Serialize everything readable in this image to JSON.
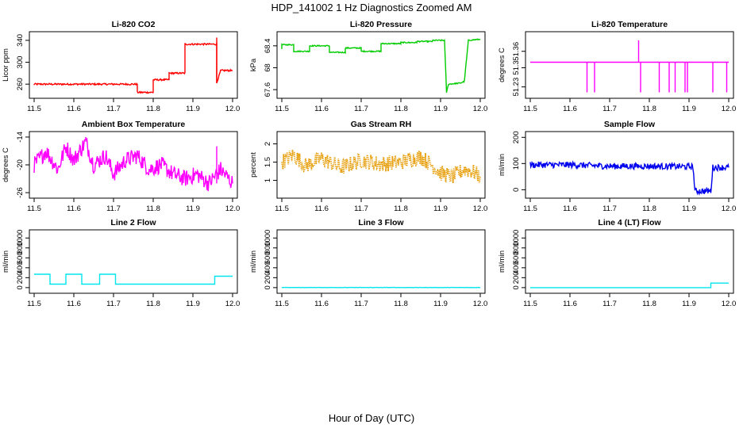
{
  "figure": {
    "title": "HDP_141002  1 Hz Diagnostics Zoomed AM",
    "xlabel": "Hour of Day (UTC)"
  },
  "chart_data": [
    {
      "type": "line",
      "title": "Li-820 CO2",
      "ylabel": "Licor ppm",
      "color": "#ff0000",
      "xlim": [
        11.5,
        12.0
      ],
      "ylim": [
        240,
        350
      ],
      "yticks": [
        260,
        300,
        340
      ],
      "x": [
        11.5,
        11.5,
        11.76,
        11.76,
        11.8,
        11.8,
        11.84,
        11.84,
        11.88,
        11.88,
        11.96,
        11.96,
        11.97,
        11.97,
        12.0
      ],
      "y": [
        258,
        260,
        260,
        245,
        245,
        268,
        268,
        280,
        280,
        333,
        333,
        262,
        285,
        285,
        285
      ],
      "noise": 1.5,
      "spikes": [
        {
          "x": 11.96,
          "y": 345
        }
      ]
    },
    {
      "type": "line",
      "title": "Li-820 Pressure",
      "ylabel": "kPa",
      "color": "#00cc00",
      "xlim": [
        11.5,
        12.0
      ],
      "ylim": [
        67.5,
        68.6
      ],
      "yticks": [
        67.6,
        68.0,
        68.4
      ],
      "x": [
        11.5,
        11.5,
        11.53,
        11.53,
        11.57,
        11.57,
        11.62,
        11.62,
        11.66,
        11.66,
        11.7,
        11.7,
        11.75,
        11.75,
        11.8,
        11.8,
        11.84,
        11.84,
        11.88,
        11.88,
        11.91,
        11.915,
        11.92,
        11.95,
        11.96,
        11.97,
        12.0
      ],
      "y": [
        68.35,
        68.42,
        68.42,
        68.3,
        68.3,
        68.4,
        68.4,
        68.28,
        68.28,
        68.36,
        68.36,
        68.3,
        68.3,
        68.44,
        68.44,
        68.46,
        68.46,
        68.48,
        68.48,
        68.5,
        68.5,
        67.55,
        67.7,
        67.72,
        67.75,
        68.5,
        68.52
      ],
      "noise": 0.01
    },
    {
      "type": "line",
      "title": "Li-820 Temperature",
      "ylabel": "degrees C",
      "color": "#ff00ff",
      "xlim": [
        11.5,
        12.0
      ],
      "ylim": [
        51.2,
        51.42
      ],
      "yticks": [
        51.23,
        51.3,
        51.36
      ],
      "x": [
        11.5,
        12.0
      ],
      "y": [
        51.32,
        51.32
      ],
      "drops": [
        {
          "x": 11.643,
          "y": 51.21
        },
        {
          "x": 11.662,
          "y": 51.21
        },
        {
          "x": 11.778,
          "y": 51.21
        },
        {
          "x": 11.825,
          "y": 51.21
        },
        {
          "x": 11.85,
          "y": 51.21
        },
        {
          "x": 11.865,
          "y": 51.21
        },
        {
          "x": 11.89,
          "y": 51.21
        },
        {
          "x": 11.896,
          "y": 51.21
        },
        {
          "x": 11.96,
          "y": 51.21
        },
        {
          "x": 11.995,
          "y": 51.21
        }
      ],
      "spikes": [
        {
          "x": 11.773,
          "y": 51.4
        }
      ]
    },
    {
      "type": "line",
      "title": "Ambient Box Temperature",
      "ylabel": "degrees C",
      "color": "#ff00ff",
      "xlim": [
        11.5,
        12.0
      ],
      "ylim": [
        -26.5,
        -13.5
      ],
      "yticks": [
        -26,
        -20,
        -14
      ],
      "x": [
        11.5,
        11.53,
        11.56,
        11.58,
        11.6,
        11.63,
        11.65,
        11.68,
        11.7,
        11.73,
        11.76,
        11.79,
        11.82,
        11.85,
        11.88,
        11.91,
        11.94,
        11.97,
        12.0
      ],
      "y": [
        -20,
        -17,
        -21,
        -16,
        -19,
        -15,
        -20,
        -18,
        -22,
        -19,
        -18,
        -21,
        -20,
        -22,
        -23,
        -22,
        -24,
        -21,
        -24
      ],
      "noise": 1.8,
      "spikes": [
        {
          "x": 11.63,
          "y": -14
        },
        {
          "x": 11.96,
          "y": -16
        }
      ]
    },
    {
      "type": "line",
      "title": "Gas Stream RH",
      "ylabel": "percent",
      "color": "#e69b00",
      "dotted": true,
      "xlim": [
        11.5,
        12.0
      ],
      "ylim": [
        0.6,
        2.25
      ],
      "yticks": [
        1.0,
        1.5,
        2.0
      ],
      "x": [
        11.5,
        11.53,
        11.56,
        11.6,
        11.65,
        11.7,
        11.75,
        11.8,
        11.85,
        11.88,
        11.9,
        11.93,
        11.96,
        11.98,
        12.0
      ],
      "y": [
        1.5,
        1.7,
        1.4,
        1.6,
        1.35,
        1.55,
        1.45,
        1.5,
        1.65,
        1.4,
        1.2,
        1.1,
        1.3,
        1.25,
        1.1
      ],
      "noise": 0.22
    },
    {
      "type": "line",
      "title": "Sample Flow",
      "ylabel": "ml/min",
      "color": "#0000ee",
      "xlim": [
        11.5,
        12.0
      ],
      "ylim": [
        -20,
        210
      ],
      "yticks": [
        0,
        100,
        200
      ],
      "x": [
        11.5,
        11.6,
        11.7,
        11.8,
        11.91,
        11.915,
        11.955,
        11.96,
        12.0
      ],
      "y": [
        95,
        95,
        90,
        90,
        88,
        -5,
        -5,
        85,
        85
      ],
      "noise": 12
    },
    {
      "type": "line",
      "title": "Line 2 Flow",
      "ylabel": "ml/min",
      "color": "#00e5ee",
      "xlim": [
        11.5,
        12.0
      ],
      "ylim": [
        -50,
        1100
      ],
      "yticks": [
        0,
        200,
        400,
        600,
        800,
        1000
      ],
      "x": [
        11.5,
        11.54,
        11.54,
        11.58,
        11.58,
        11.62,
        11.62,
        11.665,
        11.665,
        11.705,
        11.705,
        11.955,
        11.955,
        12.0
      ],
      "y": [
        270,
        270,
        70,
        70,
        270,
        270,
        70,
        70,
        270,
        270,
        70,
        70,
        230,
        230
      ],
      "noise": 0
    },
    {
      "type": "line",
      "title": "Line 3 Flow",
      "ylabel": "ml/min",
      "color": "#00e5ee",
      "xlim": [
        11.5,
        12.0
      ],
      "ylim": [
        -50,
        1100
      ],
      "yticks": [
        0,
        200,
        400,
        600,
        800,
        1000
      ],
      "x": [
        11.5,
        12.0
      ],
      "y": [
        2,
        2
      ],
      "noise": 3
    },
    {
      "type": "line",
      "title": "Line 4 (LT) Flow",
      "ylabel": "ml/min",
      "color": "#00e5ee",
      "xlim": [
        11.5,
        12.0
      ],
      "ylim": [
        -50,
        1100
      ],
      "yticks": [
        0,
        200,
        400,
        600,
        800,
        1000
      ],
      "x": [
        11.5,
        11.955,
        11.955,
        12.0
      ],
      "y": [
        0,
        0,
        90,
        90
      ],
      "noise": 0
    }
  ],
  "xticks": [
    11.5,
    11.6,
    11.7,
    11.8,
    11.9,
    12.0
  ]
}
